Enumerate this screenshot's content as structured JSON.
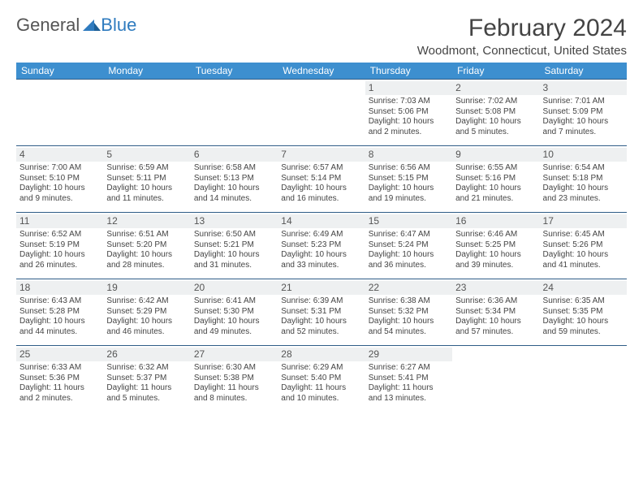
{
  "logo": {
    "text1": "General",
    "text2": "Blue"
  },
  "title": "February 2024",
  "location": "Woodmont, Connecticut, United States",
  "colors": {
    "header_bg": "#3d8fcf",
    "header_text": "#ffffff",
    "row_border": "#2f5d87",
    "daynum_bg": "#eef0f1",
    "text": "#444444",
    "logo_gray": "#555555",
    "logo_blue": "#2f7bbf"
  },
  "day_headers": [
    "Sunday",
    "Monday",
    "Tuesday",
    "Wednesday",
    "Thursday",
    "Friday",
    "Saturday"
  ],
  "weeks": [
    [
      {
        "n": "",
        "sr": "",
        "ss": "",
        "dl1": "",
        "dl2": ""
      },
      {
        "n": "",
        "sr": "",
        "ss": "",
        "dl1": "",
        "dl2": ""
      },
      {
        "n": "",
        "sr": "",
        "ss": "",
        "dl1": "",
        "dl2": ""
      },
      {
        "n": "",
        "sr": "",
        "ss": "",
        "dl1": "",
        "dl2": ""
      },
      {
        "n": "1",
        "sr": "Sunrise: 7:03 AM",
        "ss": "Sunset: 5:06 PM",
        "dl1": "Daylight: 10 hours",
        "dl2": "and 2 minutes."
      },
      {
        "n": "2",
        "sr": "Sunrise: 7:02 AM",
        "ss": "Sunset: 5:08 PM",
        "dl1": "Daylight: 10 hours",
        "dl2": "and 5 minutes."
      },
      {
        "n": "3",
        "sr": "Sunrise: 7:01 AM",
        "ss": "Sunset: 5:09 PM",
        "dl1": "Daylight: 10 hours",
        "dl2": "and 7 minutes."
      }
    ],
    [
      {
        "n": "4",
        "sr": "Sunrise: 7:00 AM",
        "ss": "Sunset: 5:10 PM",
        "dl1": "Daylight: 10 hours",
        "dl2": "and 9 minutes."
      },
      {
        "n": "5",
        "sr": "Sunrise: 6:59 AM",
        "ss": "Sunset: 5:11 PM",
        "dl1": "Daylight: 10 hours",
        "dl2": "and 11 minutes."
      },
      {
        "n": "6",
        "sr": "Sunrise: 6:58 AM",
        "ss": "Sunset: 5:13 PM",
        "dl1": "Daylight: 10 hours",
        "dl2": "and 14 minutes."
      },
      {
        "n": "7",
        "sr": "Sunrise: 6:57 AM",
        "ss": "Sunset: 5:14 PM",
        "dl1": "Daylight: 10 hours",
        "dl2": "and 16 minutes."
      },
      {
        "n": "8",
        "sr": "Sunrise: 6:56 AM",
        "ss": "Sunset: 5:15 PM",
        "dl1": "Daylight: 10 hours",
        "dl2": "and 19 minutes."
      },
      {
        "n": "9",
        "sr": "Sunrise: 6:55 AM",
        "ss": "Sunset: 5:16 PM",
        "dl1": "Daylight: 10 hours",
        "dl2": "and 21 minutes."
      },
      {
        "n": "10",
        "sr": "Sunrise: 6:54 AM",
        "ss": "Sunset: 5:18 PM",
        "dl1": "Daylight: 10 hours",
        "dl2": "and 23 minutes."
      }
    ],
    [
      {
        "n": "11",
        "sr": "Sunrise: 6:52 AM",
        "ss": "Sunset: 5:19 PM",
        "dl1": "Daylight: 10 hours",
        "dl2": "and 26 minutes."
      },
      {
        "n": "12",
        "sr": "Sunrise: 6:51 AM",
        "ss": "Sunset: 5:20 PM",
        "dl1": "Daylight: 10 hours",
        "dl2": "and 28 minutes."
      },
      {
        "n": "13",
        "sr": "Sunrise: 6:50 AM",
        "ss": "Sunset: 5:21 PM",
        "dl1": "Daylight: 10 hours",
        "dl2": "and 31 minutes."
      },
      {
        "n": "14",
        "sr": "Sunrise: 6:49 AM",
        "ss": "Sunset: 5:23 PM",
        "dl1": "Daylight: 10 hours",
        "dl2": "and 33 minutes."
      },
      {
        "n": "15",
        "sr": "Sunrise: 6:47 AM",
        "ss": "Sunset: 5:24 PM",
        "dl1": "Daylight: 10 hours",
        "dl2": "and 36 minutes."
      },
      {
        "n": "16",
        "sr": "Sunrise: 6:46 AM",
        "ss": "Sunset: 5:25 PM",
        "dl1": "Daylight: 10 hours",
        "dl2": "and 39 minutes."
      },
      {
        "n": "17",
        "sr": "Sunrise: 6:45 AM",
        "ss": "Sunset: 5:26 PM",
        "dl1": "Daylight: 10 hours",
        "dl2": "and 41 minutes."
      }
    ],
    [
      {
        "n": "18",
        "sr": "Sunrise: 6:43 AM",
        "ss": "Sunset: 5:28 PM",
        "dl1": "Daylight: 10 hours",
        "dl2": "and 44 minutes."
      },
      {
        "n": "19",
        "sr": "Sunrise: 6:42 AM",
        "ss": "Sunset: 5:29 PM",
        "dl1": "Daylight: 10 hours",
        "dl2": "and 46 minutes."
      },
      {
        "n": "20",
        "sr": "Sunrise: 6:41 AM",
        "ss": "Sunset: 5:30 PM",
        "dl1": "Daylight: 10 hours",
        "dl2": "and 49 minutes."
      },
      {
        "n": "21",
        "sr": "Sunrise: 6:39 AM",
        "ss": "Sunset: 5:31 PM",
        "dl1": "Daylight: 10 hours",
        "dl2": "and 52 minutes."
      },
      {
        "n": "22",
        "sr": "Sunrise: 6:38 AM",
        "ss": "Sunset: 5:32 PM",
        "dl1": "Daylight: 10 hours",
        "dl2": "and 54 minutes."
      },
      {
        "n": "23",
        "sr": "Sunrise: 6:36 AM",
        "ss": "Sunset: 5:34 PM",
        "dl1": "Daylight: 10 hours",
        "dl2": "and 57 minutes."
      },
      {
        "n": "24",
        "sr": "Sunrise: 6:35 AM",
        "ss": "Sunset: 5:35 PM",
        "dl1": "Daylight: 10 hours",
        "dl2": "and 59 minutes."
      }
    ],
    [
      {
        "n": "25",
        "sr": "Sunrise: 6:33 AM",
        "ss": "Sunset: 5:36 PM",
        "dl1": "Daylight: 11 hours",
        "dl2": "and 2 minutes."
      },
      {
        "n": "26",
        "sr": "Sunrise: 6:32 AM",
        "ss": "Sunset: 5:37 PM",
        "dl1": "Daylight: 11 hours",
        "dl2": "and 5 minutes."
      },
      {
        "n": "27",
        "sr": "Sunrise: 6:30 AM",
        "ss": "Sunset: 5:38 PM",
        "dl1": "Daylight: 11 hours",
        "dl2": "and 8 minutes."
      },
      {
        "n": "28",
        "sr": "Sunrise: 6:29 AM",
        "ss": "Sunset: 5:40 PM",
        "dl1": "Daylight: 11 hours",
        "dl2": "and 10 minutes."
      },
      {
        "n": "29",
        "sr": "Sunrise: 6:27 AM",
        "ss": "Sunset: 5:41 PM",
        "dl1": "Daylight: 11 hours",
        "dl2": "and 13 minutes."
      },
      {
        "n": "",
        "sr": "",
        "ss": "",
        "dl1": "",
        "dl2": ""
      },
      {
        "n": "",
        "sr": "",
        "ss": "",
        "dl1": "",
        "dl2": ""
      }
    ]
  ]
}
